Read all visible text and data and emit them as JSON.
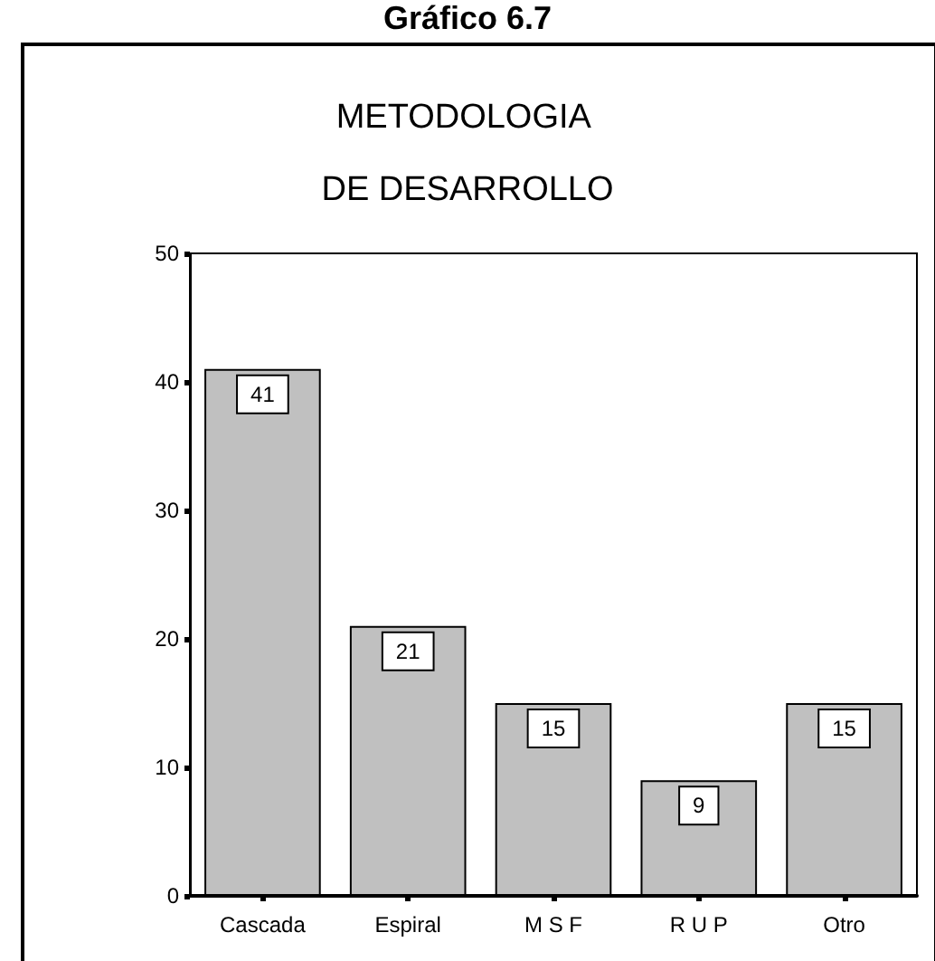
{
  "chart_data": {
    "type": "bar",
    "title": "METODOLOGIA DE DESARROLLO",
    "annotations": [
      "Gráfico 6.7"
    ],
    "categories": [
      "Cascada",
      "Espiral",
      "M S F",
      "R U P",
      "Otro"
    ],
    "values": [
      41,
      21,
      15,
      9,
      15
    ],
    "color": "#c0c0c0",
    "data_labels": true,
    "ylim": [
      0,
      50
    ],
    "yticks": [
      0,
      10,
      20,
      30,
      40,
      50
    ],
    "grid": false
  }
}
